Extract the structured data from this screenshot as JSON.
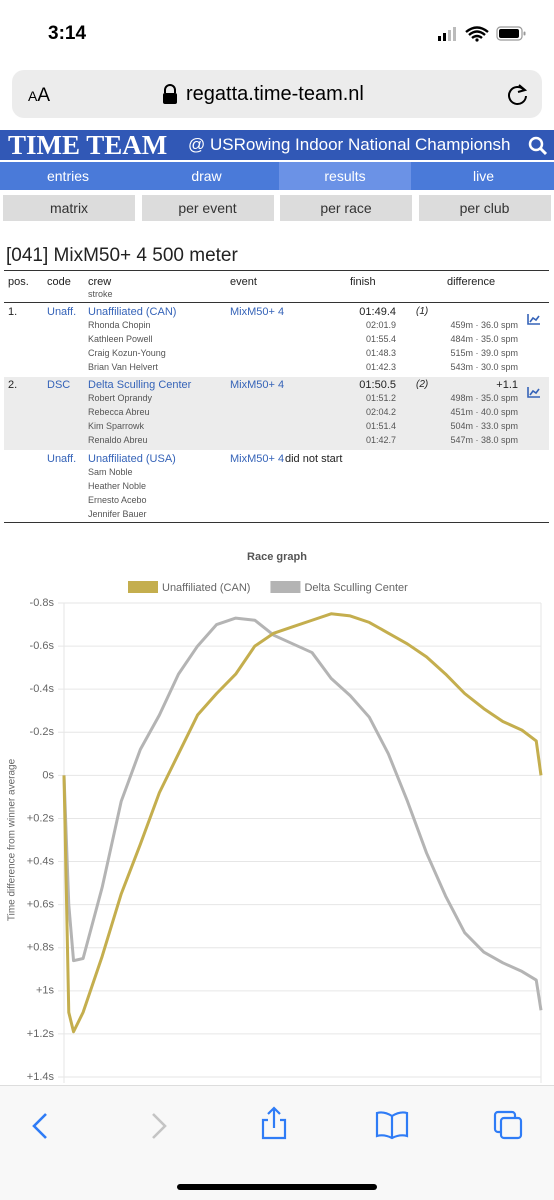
{
  "status_bar": {
    "time": "3:14"
  },
  "browser": {
    "text_size": "AA",
    "url": "regatta.time-team.nl"
  },
  "header": {
    "brand": "TIME TEAM",
    "event": "@ USRowing Indoor National Championsh"
  },
  "nav": [
    "entries",
    "draw",
    "results",
    "live"
  ],
  "subnav": [
    "matrix",
    "per event",
    "per race",
    "per club"
  ],
  "race_title": "[041] MixM50+ 4 500 meter",
  "table": {
    "columns": {
      "pos": "pos.",
      "code": "code",
      "crew": "crew",
      "stroke": "stroke",
      "event": "event",
      "finish": "finish",
      "difference": "difference"
    },
    "rows": [
      {
        "pos": "1.",
        "code": "Unaff.",
        "crew": "Unaffiliated (CAN)",
        "event": "MixM50+ 4",
        "finish": "01:49.4",
        "place": "(1)",
        "members": [
          {
            "name": "Rhonda Chopin",
            "split": "02:01.9",
            "detail": "459m · 36.0 spm"
          },
          {
            "name": "Kathleen Powell",
            "split": "01:55.4",
            "detail": "484m · 35.0 spm"
          },
          {
            "name": "Craig Kozun-Young",
            "split": "01:48.3",
            "detail": "515m · 39.0 spm"
          },
          {
            "name": "Brian Van Helvert",
            "split": "01:42.3",
            "detail": "543m · 30.0 spm"
          }
        ]
      },
      {
        "pos": "2.",
        "code": "DSC",
        "crew": "Delta Sculling Center",
        "event": "MixM50+ 4",
        "finish": "01:50.5",
        "place": "(2)",
        "difference": "+1.1",
        "members": [
          {
            "name": "Robert Oprandy",
            "split": "01:51.2",
            "detail": "498m · 35.0 spm"
          },
          {
            "name": "Rebecca Abreu",
            "split": "02:04.2",
            "detail": "451m · 40.0 spm"
          },
          {
            "name": "Kim Sparrowk",
            "split": "01:51.4",
            "detail": "504m · 33.0 spm"
          },
          {
            "name": "Renaldo Abreu",
            "split": "01:42.7",
            "detail": "547m · 38.0 spm"
          }
        ]
      },
      {
        "code": "Unaff.",
        "crew": "Unaffiliated (USA)",
        "event": "MixM50+ 4",
        "status": "did not start",
        "members": [
          {
            "name": "Sam Noble"
          },
          {
            "name": "Heather Noble"
          },
          {
            "name": "Ernesto Acebo"
          },
          {
            "name": "Jennifer Bauer"
          }
        ]
      }
    ]
  },
  "chart_data": {
    "type": "line",
    "title": "Race graph",
    "y_label": "Time difference from winner average",
    "x": [
      0,
      5,
      10,
      20,
      40,
      60,
      80,
      100,
      120,
      140,
      160,
      180,
      200,
      220,
      240,
      260,
      280,
      300,
      320,
      340,
      360,
      380,
      400,
      420,
      440,
      460,
      480,
      495,
      500
    ],
    "xlim": [
      0,
      500
    ],
    "ylim": [
      1.4,
      -0.8
    ],
    "yticks": [
      {
        "value": -0.8,
        "label": "-0.8s"
      },
      {
        "value": -0.6,
        "label": "-0.6s"
      },
      {
        "value": -0.4,
        "label": "-0.4s"
      },
      {
        "value": -0.2,
        "label": "-0.2s"
      },
      {
        "value": 0,
        "label": "0s"
      },
      {
        "value": 0.2,
        "label": "+0.2s"
      },
      {
        "value": 0.4,
        "label": "+0.4s"
      },
      {
        "value": 0.6,
        "label": "+0.6s"
      },
      {
        "value": 0.8,
        "label": "+0.8s"
      },
      {
        "value": 1,
        "label": "+1s"
      },
      {
        "value": 1.2,
        "label": "+1.2s"
      },
      {
        "value": 1.4,
        "label": "+1.4s"
      }
    ],
    "grid": true,
    "legend": "top",
    "series": [
      {
        "name": "Unaffiliated (CAN)",
        "color": "#c4ae4e",
        "values": [
          0,
          1.1,
          1.19,
          1.1,
          0.84,
          0.55,
          0.32,
          0.08,
          -0.1,
          -0.28,
          -0.38,
          -0.47,
          -0.6,
          -0.66,
          -0.69,
          -0.72,
          -0.75,
          -0.74,
          -0.71,
          -0.66,
          -0.61,
          -0.55,
          -0.47,
          -0.38,
          -0.31,
          -0.25,
          -0.21,
          -0.16,
          0
        ]
      },
      {
        "name": "Delta Sculling Center",
        "color": "#b4b4b4",
        "values": [
          0,
          0.6,
          0.86,
          0.85,
          0.52,
          0.12,
          -0.12,
          -0.28,
          -0.47,
          -0.6,
          -0.7,
          -0.73,
          -0.72,
          -0.65,
          -0.61,
          -0.57,
          -0.45,
          -0.37,
          -0.27,
          -0.1,
          0.12,
          0.36,
          0.56,
          0.73,
          0.82,
          0.87,
          0.91,
          0.95,
          1.09
        ]
      }
    ]
  }
}
